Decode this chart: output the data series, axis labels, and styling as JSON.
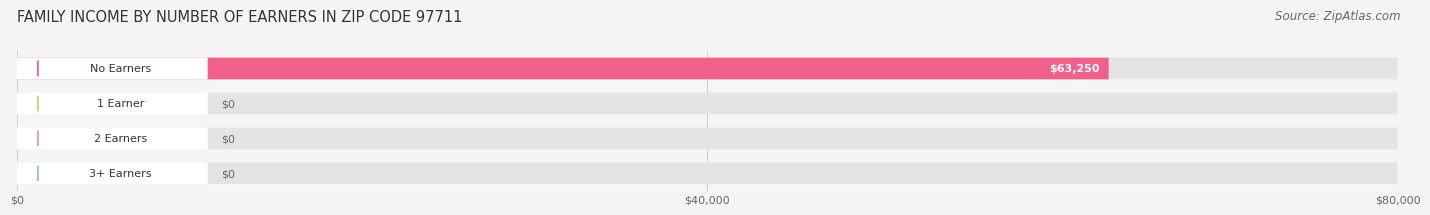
{
  "title": "FAMILY INCOME BY NUMBER OF EARNERS IN ZIP CODE 97711",
  "source": "Source: ZipAtlas.com",
  "categories": [
    "No Earners",
    "1 Earner",
    "2 Earners",
    "3+ Earners"
  ],
  "values": [
    63250,
    0,
    0,
    0
  ],
  "bar_colors": [
    "#f0608a",
    "#f0c080",
    "#f09898",
    "#a0b8e0"
  ],
  "max_value": 80000,
  "x_ticks": [
    0,
    40000,
    80000
  ],
  "x_tick_labels": [
    "$0",
    "$40,000",
    "$80,000"
  ],
  "background_color": "#f5f5f5",
  "bar_bg_color": "#e4e4e4",
  "value_label_inside": "$63,250",
  "title_fontsize": 10.5,
  "source_fontsize": 8.5
}
